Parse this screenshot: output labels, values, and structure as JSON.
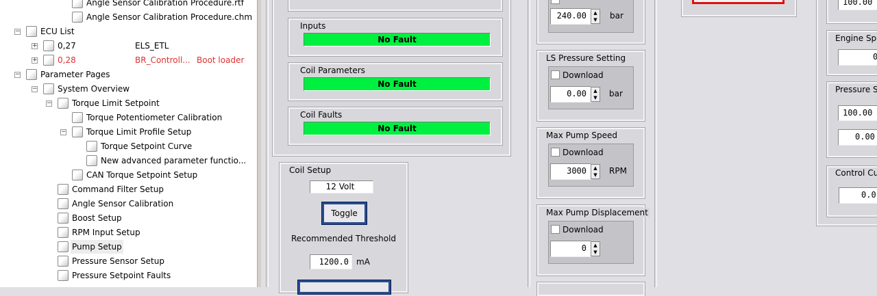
{
  "tree": {
    "items": [
      {
        "label": "Angle Sensor Calibration Procedure.rtf",
        "icon": "rtf-document-icon"
      },
      {
        "label": "Angle Sensor Calibration Procedure.chm",
        "icon": "help-file-icon"
      },
      {
        "label": "ECU List",
        "icon": "network-icon",
        "expander": "−"
      },
      {
        "label": "0,27",
        "col2": "ELS_ETL",
        "icon": "ecu-icon",
        "expander": "+"
      },
      {
        "label": "0,28",
        "col2": "BR_Controll...",
        "col3": "Boot loader",
        "icon": "ecu-warning-icon",
        "expander": "+",
        "color": "#e03030"
      },
      {
        "label": "Parameter Pages",
        "icon": "parameter-page-icon",
        "expander": "−"
      },
      {
        "label": "System Overview",
        "icon": "parameter-page-icon",
        "expander": "−"
      },
      {
        "label": "Torque Limit Setpoint",
        "icon": "parameter-page-icon",
        "expander": "−"
      },
      {
        "label": "Torque Potentiometer Calibration",
        "icon": "parameter-page-icon"
      },
      {
        "label": "Torque Limit Profile Setup",
        "icon": "parameter-page-icon",
        "expander": "−"
      },
      {
        "label": "Torque Setpoint Curve",
        "icon": "parameter-page-icon"
      },
      {
        "label": "New advanced parameter functio...",
        "icon": "parameter-page-icon"
      },
      {
        "label": "CAN Torque Setpoint Setup",
        "icon": "parameter-page-icon"
      },
      {
        "label": "Command Filter Setup",
        "icon": "parameter-page-icon"
      },
      {
        "label": "Angle Sensor Calibration",
        "icon": "parameter-page-icon"
      },
      {
        "label": "Boost Setup",
        "icon": "parameter-page-icon"
      },
      {
        "label": "RPM Input Setup",
        "icon": "parameter-page-icon"
      },
      {
        "label": "Pump Setup",
        "icon": "parameter-page-icon",
        "selected": true
      },
      {
        "label": "Pressure Sensor Setup",
        "icon": "parameter-page-icon"
      },
      {
        "label": "Pressure Setpoint Faults",
        "icon": "parameter-page-icon"
      }
    ]
  },
  "faults": [
    {
      "label": "Inputs",
      "status": "No Fault"
    },
    {
      "label": "Coil Parameters",
      "status": "No Fault"
    },
    {
      "label": "Coil Faults",
      "status": "No Fault"
    }
  ],
  "fault_color": "#00f040",
  "coil_setup": {
    "label": "Coil Setup",
    "voltage": "12 Volt",
    "toggle": "Toggle",
    "threshold_label": "Recommended Threshold",
    "threshold_value": "1200.0",
    "threshold_unit": "mA"
  },
  "settings": {
    "top": {
      "value": "240.00",
      "unit": "bar"
    },
    "ls_pressure": {
      "label": "LS Pressure Setting",
      "download": "Download",
      "value": "0.00",
      "unit": "bar"
    },
    "max_pump_speed": {
      "label": "Max Pump Speed",
      "download": "Download",
      "value": "3000",
      "unit": "RPM"
    },
    "max_pump_disp": {
      "label": "Max Pump Displacement",
      "download": "Download",
      "value": "0"
    }
  },
  "readouts": {
    "top_value": "100.00",
    "engine_speed": {
      "label": "Engine Spe",
      "value": "0"
    },
    "pressure": {
      "label": "Pressure S",
      "value1": "100.00",
      "value2": "0.00"
    },
    "control_current": {
      "label": "Control Cu",
      "value": "0.0"
    }
  }
}
